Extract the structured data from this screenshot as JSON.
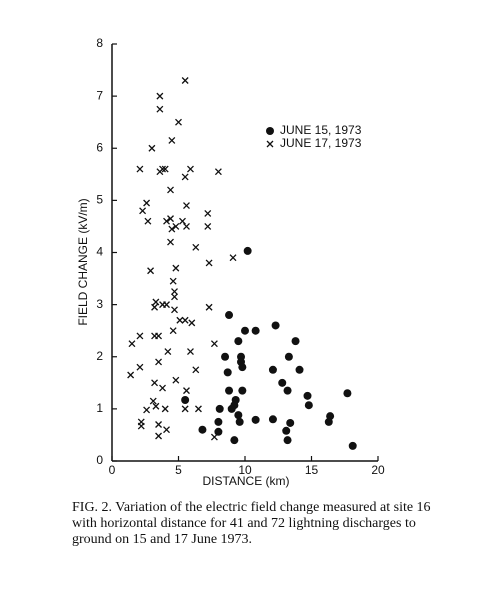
{
  "chart_data": {
    "type": "scatter",
    "xlabel": "DISTANCE (km)",
    "ylabel": "FIELD CHANGE (kV/m)",
    "xlim": [
      0,
      20
    ],
    "ylim": [
      0,
      8
    ],
    "xticks": [
      0,
      5,
      10,
      15,
      20
    ],
    "yticks": [
      0,
      1,
      2,
      3,
      4,
      5,
      6,
      7,
      8
    ],
    "grid": false,
    "caption": "FIG. 2. Variation of the electric field change measured at site 16 with horizontal distance for 41 and 72 lightning discharges to ground on 15 and 17 June 1973.",
    "series": [
      {
        "name": "JUNE 15, 1973",
        "color": "#111111",
        "marker": "dot",
        "x": [
          10.2,
          8.8,
          10.0,
          10.8,
          12.3,
          9.5,
          8.5,
          9.7,
          9.7,
          9.8,
          13.8,
          13.3,
          14.1,
          12.1,
          8.7,
          12.8,
          8.8,
          9.8,
          13.2,
          14.7,
          17.7,
          5.5,
          9.3,
          9.2,
          9.0,
          14.8,
          8.1,
          9.5,
          16.4,
          10.8,
          12.1,
          8.0,
          13.4,
          16.3,
          6.8,
          8.0,
          13.1,
          9.2,
          13.2,
          18.1,
          9.6
        ],
        "y": [
          4.03,
          2.8,
          2.5,
          2.5,
          2.6,
          2.3,
          2.0,
          2.0,
          1.9,
          1.8,
          2.3,
          2.0,
          1.75,
          1.75,
          1.7,
          1.5,
          1.35,
          1.35,
          1.35,
          1.25,
          1.3,
          1.17,
          1.17,
          1.07,
          1.0,
          1.07,
          1.0,
          0.88,
          0.86,
          0.79,
          0.8,
          0.75,
          0.73,
          0.75,
          0.6,
          0.56,
          0.58,
          0.4,
          0.4,
          0.29,
          0.75
        ]
      },
      {
        "name": "JUNE 17, 1973",
        "color": "#111111",
        "marker": "x",
        "x": [
          5.5,
          3.6,
          3.6,
          5.0,
          4.5,
          3.0,
          5.9,
          2.1,
          3.8,
          4.0,
          3.6,
          8.0,
          5.5,
          4.4,
          2.6,
          5.6,
          2.3,
          7.2,
          4.4,
          4.1,
          2.7,
          5.3,
          4.8,
          7.2,
          4.5,
          5.6,
          4.4,
          6.3,
          9.1,
          7.3,
          4.8,
          2.9,
          4.6,
          4.7,
          4.7,
          3.3,
          3.8,
          4.1,
          3.2,
          7.3,
          4.7,
          5.5,
          6.0,
          5.1,
          3.2,
          3.5,
          2.1,
          1.5,
          4.6,
          4.2,
          5.9,
          7.7,
          6.3,
          3.5,
          2.1,
          1.4,
          4.8,
          3.2,
          3.8,
          5.6,
          3.1,
          3.3,
          4.0,
          5.5,
          2.6,
          6.5,
          2.2,
          2.2,
          3.5,
          4.1,
          3.5,
          7.7
        ],
        "y": [
          7.3,
          7.0,
          6.75,
          6.5,
          6.15,
          6.0,
          5.6,
          5.6,
          5.6,
          5.6,
          5.55,
          5.55,
          5.45,
          5.2,
          4.95,
          4.9,
          4.8,
          4.75,
          4.65,
          4.6,
          4.6,
          4.6,
          4.5,
          4.5,
          4.45,
          4.5,
          4.2,
          4.1,
          3.9,
          3.8,
          3.7,
          3.65,
          3.45,
          3.25,
          3.15,
          3.05,
          3.0,
          3.0,
          2.95,
          2.95,
          2.9,
          2.7,
          2.65,
          2.7,
          2.4,
          2.4,
          2.4,
          2.25,
          2.5,
          2.1,
          2.1,
          2.25,
          1.75,
          1.9,
          1.8,
          1.65,
          1.55,
          1.5,
          1.4,
          1.35,
          1.15,
          1.05,
          1.0,
          1.0,
          0.98,
          1.0,
          0.75,
          0.67,
          0.7,
          0.6,
          0.48,
          0.46
        ]
      }
    ]
  }
}
